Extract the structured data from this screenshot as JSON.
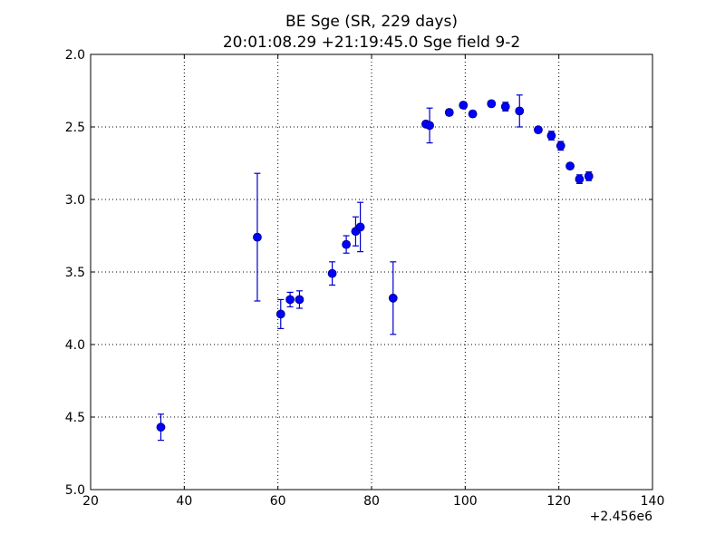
{
  "chart_data": {
    "type": "scatter",
    "title": "BE Sge (SR, 229 days)",
    "subtitle": "20:01:08.29 +21:19:45.0 Sge field 9-2",
    "xlabel": "",
    "ylabel": "",
    "x_offset_label": "+2.456e6",
    "xlim": [
      20,
      140
    ],
    "ylim": [
      5.0,
      2.0
    ],
    "y_inverted": true,
    "grid": true,
    "x_ticks": [
      "20",
      "40",
      "60",
      "80",
      "100",
      "120",
      "140"
    ],
    "y_ticks": [
      "2.0",
      "2.5",
      "3.0",
      "3.5",
      "4.0",
      "4.5",
      "5.0"
    ],
    "marker_color": "#0000ff",
    "errorbar_color": "#0000cc",
    "series": [
      {
        "points": [
          {
            "x": 35.0,
            "y": 4.57,
            "err": 0.09
          },
          {
            "x": 55.6,
            "y": 3.26,
            "err": 0.44
          },
          {
            "x": 60.6,
            "y": 3.79,
            "err": 0.1
          },
          {
            "x": 62.6,
            "y": 3.69,
            "err": 0.05
          },
          {
            "x": 64.6,
            "y": 3.69,
            "err": 0.06
          },
          {
            "x": 71.6,
            "y": 3.51,
            "err": 0.08
          },
          {
            "x": 74.6,
            "y": 3.31,
            "err": 0.06
          },
          {
            "x": 76.6,
            "y": 3.22,
            "err": 0.1
          },
          {
            "x": 77.6,
            "y": 3.19,
            "err": 0.17
          },
          {
            "x": 84.6,
            "y": 3.68,
            "err": 0.25
          },
          {
            "x": 91.6,
            "y": 2.48,
            "err": 0.02
          },
          {
            "x": 92.4,
            "y": 2.49,
            "err": 0.12
          },
          {
            "x": 96.6,
            "y": 2.4,
            "err": 0.02
          },
          {
            "x": 99.6,
            "y": 2.35,
            "err": 0.02
          },
          {
            "x": 101.6,
            "y": 2.41,
            "err": 0.02
          },
          {
            "x": 105.6,
            "y": 2.34,
            "err": 0.02
          },
          {
            "x": 108.6,
            "y": 2.36,
            "err": 0.03
          },
          {
            "x": 111.6,
            "y": 2.39,
            "err": 0.11
          },
          {
            "x": 115.6,
            "y": 2.52,
            "err": 0.02
          },
          {
            "x": 118.4,
            "y": 2.56,
            "err": 0.03
          },
          {
            "x": 120.4,
            "y": 2.63,
            "err": 0.03
          },
          {
            "x": 122.4,
            "y": 2.77,
            "err": 0.02
          },
          {
            "x": 124.4,
            "y": 2.86,
            "err": 0.03
          },
          {
            "x": 126.4,
            "y": 2.84,
            "err": 0.03
          }
        ]
      }
    ]
  }
}
